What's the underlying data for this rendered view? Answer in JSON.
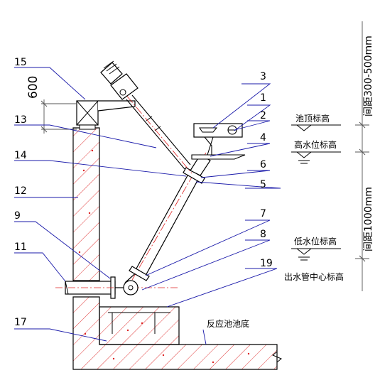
{
  "callouts": {
    "n1": "1",
    "n2": "2",
    "n3": "3",
    "n4": "4",
    "n5": "5",
    "n6": "6",
    "n7": "7",
    "n8": "8",
    "n9": "9",
    "n11": "11",
    "n12": "12",
    "n13": "13",
    "n14": "14",
    "n15": "15",
    "n17": "17",
    "n19": "19"
  },
  "dimensions": {
    "top_offset": "600",
    "spacing_upper": "间距300-500mm",
    "spacing_lower": "间距1000mm"
  },
  "level_labels": {
    "pool_top": "池顶标高",
    "high_water": "高水位标高",
    "low_water": "低水位标高",
    "outlet_center": "出水管中心标高"
  },
  "floor_label": "反应池池底",
  "colors": {
    "structure": "#000000",
    "concrete_hatch": "#dd2222",
    "pipe_centerline": "#dd2222",
    "leader": "#1a1aaa",
    "dim_line": "#555555"
  }
}
